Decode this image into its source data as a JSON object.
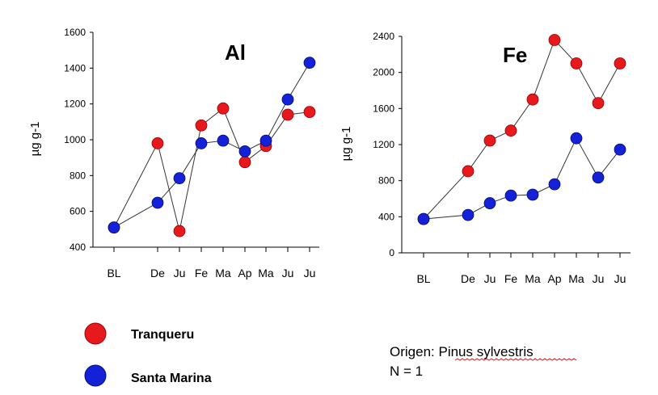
{
  "chart_data": [
    {
      "type": "line",
      "title": "Al",
      "ylabel": "µg g-1",
      "ylim": [
        400,
        1600
      ],
      "yticks": [
        400,
        600,
        800,
        1000,
        1200,
        1400,
        1600
      ],
      "categories": [
        "BL",
        "De",
        "Ju",
        "Fe",
        "Ma",
        "Ap",
        "Ma",
        "Ju",
        "Ju"
      ],
      "grid": false,
      "series": [
        {
          "name": "Tranqueru",
          "color": "#e8191c",
          "values": [
            510,
            980,
            490,
            1080,
            1175,
            875,
            965,
            1140,
            1155
          ]
        },
        {
          "name": "Santa Marina",
          "color": "#1421d8",
          "values": [
            510,
            648,
            785,
            980,
            995,
            935,
            995,
            1225,
            1430
          ]
        }
      ]
    },
    {
      "type": "line",
      "title": "Fe",
      "ylabel": "µg g-1",
      "ylim": [
        0,
        2400
      ],
      "yticks": [
        0,
        400,
        800,
        1200,
        1600,
        2000,
        2400
      ],
      "categories": [
        "BL",
        "De",
        "Ju",
        "Fe",
        "Ma",
        "Ap",
        "Ma",
        "Ju",
        "Ju"
      ],
      "grid": false,
      "series": [
        {
          "name": "Tranqueru",
          "color": "#e8191c",
          "values": [
            375,
            905,
            1245,
            1355,
            1700,
            2360,
            2100,
            1660,
            2100
          ]
        },
        {
          "name": "Santa Marina",
          "color": "#1421d8",
          "values": [
            375,
            420,
            550,
            635,
            645,
            760,
            1270,
            835,
            1145
          ]
        }
      ]
    }
  ],
  "legend": {
    "items": [
      {
        "label": "Tranqueru",
        "color": "#e8191c"
      },
      {
        "label": "Santa Marina",
        "color": "#1421d8"
      }
    ]
  },
  "note": {
    "line1_prefix": "Origen: ",
    "line1_species": "Pinus sylvestris",
    "line2": "N = 1"
  }
}
